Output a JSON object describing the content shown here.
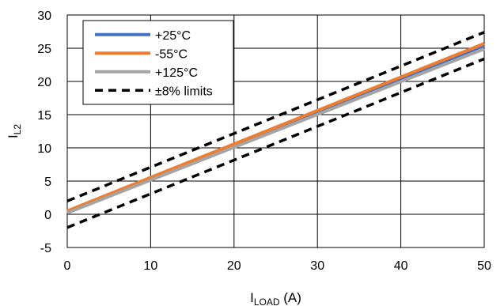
{
  "chart_data": {
    "type": "line",
    "xlabel": {
      "main": "I",
      "sub": "LOAD",
      "suffix": " (A)"
    },
    "ylabel": {
      "main": "I",
      "sub": "L2"
    },
    "xlim": [
      0,
      50
    ],
    "ylim": [
      -5,
      30
    ],
    "xticks": [
      0,
      10,
      20,
      30,
      40,
      50
    ],
    "yticks": [
      -5,
      0,
      5,
      10,
      15,
      20,
      25,
      30
    ],
    "xtick_labels": [
      "0",
      "10",
      "20",
      "30",
      "40",
      "50"
    ],
    "ytick_labels": [
      "-5",
      "0",
      "5",
      "10",
      "15",
      "20",
      "25",
      "30"
    ],
    "grid": true,
    "legend_position": "top-left",
    "series": [
      {
        "name": "+25°C",
        "color": "#4472C4",
        "style": "solid",
        "x": [
          0,
          50
        ],
        "y": [
          0.4,
          25.4
        ]
      },
      {
        "name": "-55°C",
        "color": "#ED7D31",
        "style": "solid",
        "x": [
          0,
          50
        ],
        "y": [
          0.5,
          25.7
        ]
      },
      {
        "name": "+125°C",
        "color": "#A5A5A5",
        "style": "solid",
        "x": [
          0,
          50
        ],
        "y": [
          0.2,
          24.9
        ]
      },
      {
        "name": "±8% limits",
        "color": "#000000",
        "style": "dashed",
        "x": [
          0,
          50
        ],
        "y": [
          2.0,
          27.4
        ]
      },
      {
        "name": "",
        "color": "#000000",
        "style": "dashed",
        "legend": false,
        "x": [
          0,
          50
        ],
        "y": [
          -2.0,
          23.4
        ]
      }
    ]
  }
}
